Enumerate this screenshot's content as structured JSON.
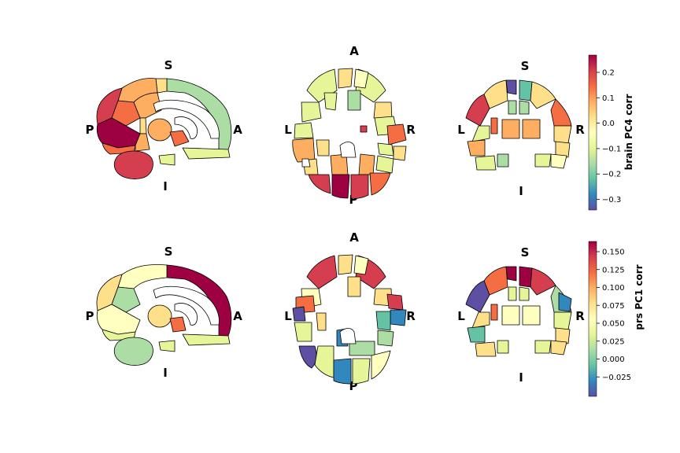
{
  "rows": [
    {
      "colorbar": {
        "label": "brain PC4 corr",
        "ticks": [
          "0.2",
          "0.1",
          "0.0",
          "−0.1",
          "−0.2",
          "−0.3"
        ]
      },
      "sagittal": {
        "top": "S",
        "bottom": "I",
        "left": "P",
        "right": "A"
      },
      "axial": {
        "top": "A",
        "bottom": "P",
        "left": "L",
        "right": "R"
      },
      "coronal": {
        "top": "S",
        "bottom": "I",
        "left": "L",
        "right": "R"
      }
    },
    {
      "colorbar": {
        "label": "prs PC1 corr",
        "ticks": [
          "0.150",
          "0.125",
          "0.100",
          "0.075",
          "0.050",
          "0.025",
          "0.000",
          "−0.025"
        ]
      },
      "sagittal": {
        "top": "S",
        "bottom": "I",
        "left": "P",
        "right": "A"
      },
      "axial": {
        "top": "A",
        "bottom": "P",
        "left": "L",
        "right": "R"
      },
      "coronal": {
        "top": "S",
        "bottom": "I",
        "left": "L",
        "right": "R"
      }
    }
  ],
  "colormap": "Spectral_r",
  "colors": {
    "darkred": "#9e0142",
    "red": "#d53e4f",
    "orange": "#f46d43",
    "lightorange": "#fdae61",
    "yellow": "#fee08b",
    "paleyellow": "#ffffbf",
    "lightgreen": "#e6f598",
    "green": "#abdda4",
    "teal": "#66c2a5",
    "blue": "#3288bd",
    "purple": "#5e4fa2"
  }
}
